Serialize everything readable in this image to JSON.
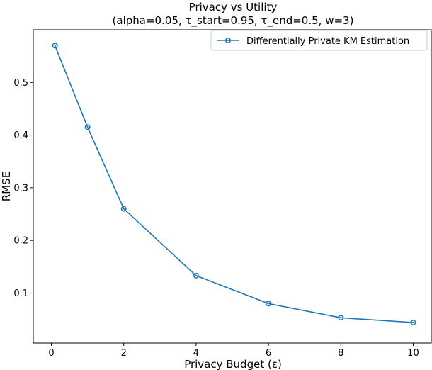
{
  "chart_data": {
    "type": "line",
    "title": "Privacy vs Utility",
    "subtitle": "(alpha=0.05, τ_start=0.95, τ_end=0.5, w=3)",
    "xlabel": "Privacy Budget (ε)",
    "ylabel": "RMSE",
    "xlim": [
      -0.5,
      10.5
    ],
    "ylim": [
      0.005,
      0.6
    ],
    "xticks": [
      0,
      2,
      4,
      6,
      8,
      10
    ],
    "yticks": [
      0.1,
      0.2,
      0.3,
      0.4,
      0.5
    ],
    "grid": false,
    "legend_position": "upper-right",
    "series": [
      {
        "name": "Differentially Private KM Estimation",
        "color": "#1f77b4",
        "marker": "circle-open",
        "x": [
          0.1,
          1,
          2,
          4,
          6,
          8,
          10
        ],
        "y": [
          0.57,
          0.415,
          0.26,
          0.133,
          0.08,
          0.053,
          0.044
        ]
      }
    ]
  }
}
